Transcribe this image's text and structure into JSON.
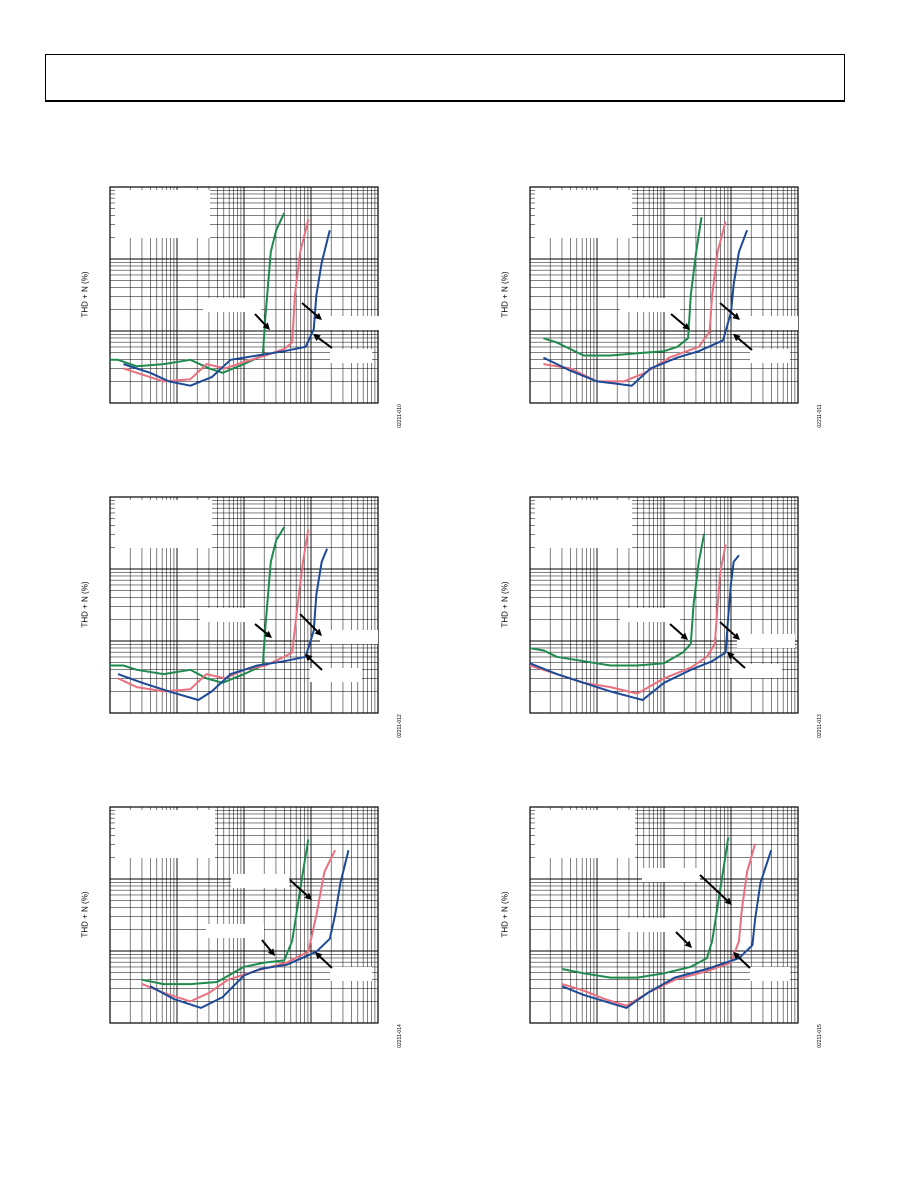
{
  "colors": {
    "green": "#1e8a4e",
    "pink": "#e9707e",
    "blue": "#1c4a96",
    "grid": "#000000"
  },
  "panels": [
    {
      "ylabel": "THD + N (%)",
      "code": "02211-010",
      "chart_data": {
        "type": "line",
        "scale": "log-log",
        "series": [
          {
            "color": "green",
            "points": [
              [
                0,
                0.8
              ],
              [
                0.03,
                0.8
              ],
              [
                0.1,
                0.83
              ],
              [
                0.2,
                0.82
              ],
              [
                0.3,
                0.8
              ],
              [
                0.37,
                0.84
              ],
              [
                0.42,
                0.86
              ],
              [
                0.5,
                0.82
              ],
              [
                0.57,
                0.78
              ],
              [
                0.58,
                0.6
              ],
              [
                0.6,
                0.3
              ],
              [
                0.62,
                0.2
              ],
              [
                0.65,
                0.12
              ]
            ]
          },
          {
            "color": "pink",
            "points": [
              [
                0.05,
                0.84
              ],
              [
                0.1,
                0.86
              ],
              [
                0.2,
                0.9
              ],
              [
                0.3,
                0.89
              ],
              [
                0.36,
                0.82
              ],
              [
                0.43,
                0.84
              ],
              [
                0.5,
                0.81
              ],
              [
                0.58,
                0.78
              ],
              [
                0.65,
                0.75
              ],
              [
                0.68,
                0.72
              ],
              [
                0.69,
                0.5
              ],
              [
                0.71,
                0.3
              ],
              [
                0.74,
                0.15
              ]
            ]
          },
          {
            "color": "blue",
            "points": [
              [
                0.05,
                0.82
              ],
              [
                0.15,
                0.86
              ],
              [
                0.22,
                0.9
              ],
              [
                0.3,
                0.92
              ],
              [
                0.38,
                0.88
              ],
              [
                0.45,
                0.8
              ],
              [
                0.55,
                0.78
              ],
              [
                0.65,
                0.76
              ],
              [
                0.73,
                0.74
              ],
              [
                0.76,
                0.66
              ],
              [
                0.77,
                0.5
              ],
              [
                0.79,
                0.35
              ],
              [
                0.82,
                0.2
              ]
            ]
          }
        ]
      }
    },
    {
      "ylabel": "THD + N (%)",
      "code": "02211-011",
      "chart_data": {
        "type": "line",
        "scale": "log-log",
        "series": [
          {
            "color": "green",
            "points": [
              [
                0.05,
                0.7
              ],
              [
                0.1,
                0.72
              ],
              [
                0.2,
                0.78
              ],
              [
                0.3,
                0.78
              ],
              [
                0.4,
                0.77
              ],
              [
                0.5,
                0.76
              ],
              [
                0.55,
                0.74
              ],
              [
                0.59,
                0.7
              ],
              [
                0.6,
                0.5
              ],
              [
                0.62,
                0.3
              ],
              [
                0.64,
                0.14
              ]
            ]
          },
          {
            "color": "pink",
            "points": [
              [
                0.05,
                0.82
              ],
              [
                0.15,
                0.84
              ],
              [
                0.25,
                0.9
              ],
              [
                0.35,
                0.9
              ],
              [
                0.43,
                0.86
              ],
              [
                0.52,
                0.79
              ],
              [
                0.63,
                0.74
              ],
              [
                0.67,
                0.67
              ],
              [
                0.68,
                0.5
              ],
              [
                0.7,
                0.3
              ],
              [
                0.73,
                0.16
              ]
            ]
          },
          {
            "color": "blue",
            "points": [
              [
                0.05,
                0.79
              ],
              [
                0.15,
                0.85
              ],
              [
                0.25,
                0.9
              ],
              [
                0.32,
                0.91
              ],
              [
                0.38,
                0.92
              ],
              [
                0.45,
                0.84
              ],
              [
                0.55,
                0.79
              ],
              [
                0.63,
                0.76
              ],
              [
                0.72,
                0.71
              ],
              [
                0.75,
                0.58
              ],
              [
                0.76,
                0.45
              ],
              [
                0.78,
                0.3
              ],
              [
                0.81,
                0.2
              ]
            ]
          }
        ]
      }
    },
    {
      "ylabel": "THD + N (%)",
      "code": "02211-012",
      "chart_data": {
        "type": "line",
        "scale": "log-log",
        "series": [
          {
            "color": "green",
            "points": [
              [
                0,
                0.78
              ],
              [
                0.05,
                0.78
              ],
              [
                0.1,
                0.8
              ],
              [
                0.2,
                0.82
              ],
              [
                0.3,
                0.8
              ],
              [
                0.36,
                0.84
              ],
              [
                0.42,
                0.86
              ],
              [
                0.5,
                0.82
              ],
              [
                0.57,
                0.78
              ],
              [
                0.58,
                0.6
              ],
              [
                0.6,
                0.3
              ],
              [
                0.62,
                0.2
              ],
              [
                0.65,
                0.14
              ]
            ]
          },
          {
            "color": "pink",
            "points": [
              [
                0.03,
                0.84
              ],
              [
                0.1,
                0.88
              ],
              [
                0.2,
                0.9
              ],
              [
                0.3,
                0.89
              ],
              [
                0.36,
                0.82
              ],
              [
                0.43,
                0.84
              ],
              [
                0.5,
                0.8
              ],
              [
                0.58,
                0.78
              ],
              [
                0.65,
                0.74
              ],
              [
                0.68,
                0.72
              ],
              [
                0.7,
                0.5
              ],
              [
                0.72,
                0.3
              ],
              [
                0.74,
                0.15
              ]
            ]
          },
          {
            "color": "blue",
            "points": [
              [
                0.03,
                0.82
              ],
              [
                0.12,
                0.86
              ],
              [
                0.22,
                0.9
              ],
              [
                0.33,
                0.94
              ],
              [
                0.38,
                0.9
              ],
              [
                0.45,
                0.82
              ],
              [
                0.55,
                0.78
              ],
              [
                0.65,
                0.76
              ],
              [
                0.73,
                0.74
              ],
              [
                0.76,
                0.62
              ],
              [
                0.77,
                0.45
              ],
              [
                0.79,
                0.3
              ],
              [
                0.81,
                0.24
              ]
            ]
          }
        ]
      }
    },
    {
      "ylabel": "THD + N (%)",
      "code": "02211-013",
      "chart_data": {
        "type": "line",
        "scale": "log-log",
        "series": [
          {
            "color": "green",
            "points": [
              [
                0,
                0.7
              ],
              [
                0.05,
                0.71
              ],
              [
                0.1,
                0.74
              ],
              [
                0.2,
                0.76
              ],
              [
                0.3,
                0.78
              ],
              [
                0.4,
                0.78
              ],
              [
                0.5,
                0.77
              ],
              [
                0.57,
                0.72
              ],
              [
                0.6,
                0.68
              ],
              [
                0.61,
                0.5
              ],
              [
                0.63,
                0.3
              ],
              [
                0.65,
                0.17
              ]
            ]
          },
          {
            "color": "pink",
            "points": [
              [
                0,
                0.78
              ],
              [
                0.1,
                0.82
              ],
              [
                0.2,
                0.86
              ],
              [
                0.3,
                0.88
              ],
              [
                0.4,
                0.91
              ],
              [
                0.5,
                0.84
              ],
              [
                0.6,
                0.79
              ],
              [
                0.66,
                0.74
              ],
              [
                0.69,
                0.68
              ],
              [
                0.7,
                0.5
              ],
              [
                0.71,
                0.35
              ],
              [
                0.73,
                0.22
              ]
            ]
          },
          {
            "color": "blue",
            "points": [
              [
                0,
                0.77
              ],
              [
                0.1,
                0.82
              ],
              [
                0.2,
                0.86
              ],
              [
                0.3,
                0.9
              ],
              [
                0.42,
                0.94
              ],
              [
                0.5,
                0.86
              ],
              [
                0.6,
                0.8
              ],
              [
                0.68,
                0.76
              ],
              [
                0.73,
                0.72
              ],
              [
                0.74,
                0.55
              ],
              [
                0.75,
                0.4
              ],
              [
                0.76,
                0.3
              ],
              [
                0.78,
                0.27
              ]
            ]
          }
        ]
      }
    },
    {
      "ylabel": "THD + N (%)",
      "code": "02211-014",
      "chart_data": {
        "type": "line",
        "scale": "log-log",
        "series": [
          {
            "color": "green",
            "points": [
              [
                0.12,
                0.8
              ],
              [
                0.2,
                0.82
              ],
              [
                0.3,
                0.82
              ],
              [
                0.4,
                0.81
              ],
              [
                0.5,
                0.74
              ],
              [
                0.58,
                0.72
              ],
              [
                0.65,
                0.71
              ],
              [
                0.68,
                0.62
              ],
              [
                0.7,
                0.46
              ],
              [
                0.72,
                0.3
              ],
              [
                0.74,
                0.15
              ]
            ]
          },
          {
            "color": "pink",
            "points": [
              [
                0.12,
                0.82
              ],
              [
                0.2,
                0.86
              ],
              [
                0.3,
                0.9
              ],
              [
                0.37,
                0.86
              ],
              [
                0.44,
                0.8
              ],
              [
                0.54,
                0.76
              ],
              [
                0.66,
                0.72
              ],
              [
                0.74,
                0.67
              ],
              [
                0.77,
                0.5
              ],
              [
                0.8,
                0.3
              ],
              [
                0.84,
                0.2
              ]
            ]
          },
          {
            "color": "blue",
            "points": [
              [
                0.15,
                0.83
              ],
              [
                0.24,
                0.89
              ],
              [
                0.34,
                0.93
              ],
              [
                0.42,
                0.88
              ],
              [
                0.5,
                0.78
              ],
              [
                0.56,
                0.75
              ],
              [
                0.66,
                0.73
              ],
              [
                0.77,
                0.67
              ],
              [
                0.82,
                0.61
              ],
              [
                0.84,
                0.5
              ],
              [
                0.86,
                0.35
              ],
              [
                0.89,
                0.2
              ]
            ]
          }
        ]
      }
    },
    {
      "ylabel": "THD + N (%)",
      "code": "02211-015",
      "chart_data": {
        "type": "line",
        "scale": "log-log",
        "series": [
          {
            "color": "green",
            "points": [
              [
                0.12,
                0.75
              ],
              [
                0.2,
                0.77
              ],
              [
                0.3,
                0.79
              ],
              [
                0.4,
                0.79
              ],
              [
                0.5,
                0.77
              ],
              [
                0.6,
                0.74
              ],
              [
                0.66,
                0.7
              ],
              [
                0.68,
                0.62
              ],
              [
                0.7,
                0.46
              ],
              [
                0.72,
                0.3
              ],
              [
                0.74,
                0.14
              ]
            ]
          },
          {
            "color": "pink",
            "points": [
              [
                0.12,
                0.82
              ],
              [
                0.2,
                0.85
              ],
              [
                0.28,
                0.89
              ],
              [
                0.36,
                0.92
              ],
              [
                0.44,
                0.86
              ],
              [
                0.54,
                0.8
              ],
              [
                0.66,
                0.76
              ],
              [
                0.75,
                0.72
              ],
              [
                0.78,
                0.62
              ],
              [
                0.79,
                0.48
              ],
              [
                0.81,
                0.3
              ],
              [
                0.84,
                0.17
              ]
            ]
          },
          {
            "color": "blue",
            "points": [
              [
                0.12,
                0.83
              ],
              [
                0.2,
                0.87
              ],
              [
                0.28,
                0.9
              ],
              [
                0.36,
                0.93
              ],
              [
                0.44,
                0.86
              ],
              [
                0.54,
                0.79
              ],
              [
                0.66,
                0.75
              ],
              [
                0.78,
                0.7
              ],
              [
                0.83,
                0.64
              ],
              [
                0.84,
                0.52
              ],
              [
                0.86,
                0.35
              ],
              [
                0.9,
                0.2
              ]
            ]
          }
        ]
      }
    }
  ]
}
